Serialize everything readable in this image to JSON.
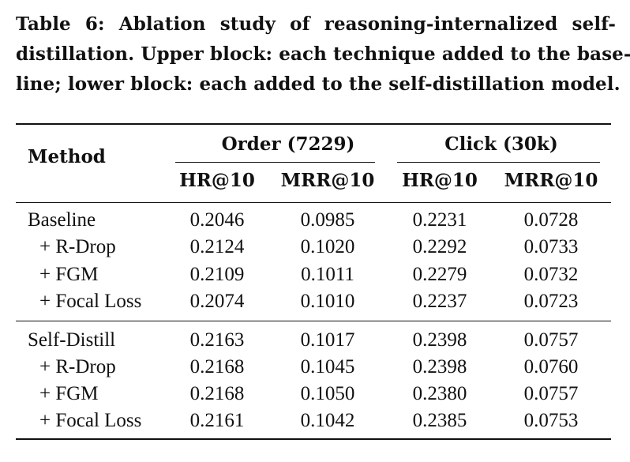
{
  "caption": {
    "lines": [
      "Table 6: Ablation study of reasoning-internalized self-",
      "distillation. Upper block: each technique added to the base-",
      "line; lower block: each added to the self-distillation model."
    ]
  },
  "table": {
    "method_header": "Method",
    "groups": [
      {
        "label": "Order (7229)",
        "cols": [
          "HR@10",
          "MRR@10"
        ]
      },
      {
        "label": "Click (30k)",
        "cols": [
          "HR@10",
          "MRR@10"
        ]
      }
    ],
    "rows": [
      {
        "method": "Baseline",
        "values": [
          "0.2046",
          "0.0985",
          "0.2231",
          "0.0728"
        ]
      },
      {
        "method": "+ R-Drop",
        "values": [
          "0.2124",
          "0.1020",
          "0.2292",
          "0.0733"
        ]
      },
      {
        "method": "+ FGM",
        "values": [
          "0.2109",
          "0.1011",
          "0.2279",
          "0.0732"
        ]
      },
      {
        "method": "+ Focal Loss",
        "values": [
          "0.2074",
          "0.1010",
          "0.2237",
          "0.0723"
        ]
      },
      {
        "method": "Self-Distill",
        "values": [
          "0.2163",
          "0.1017",
          "0.2398",
          "0.0757"
        ]
      },
      {
        "method": "+ R-Drop",
        "values": [
          "0.2168",
          "0.1045",
          "0.2398",
          "0.0760"
        ]
      },
      {
        "method": "+ FGM",
        "values": [
          "0.2168",
          "0.1050",
          "0.2380",
          "0.0757"
        ]
      },
      {
        "method": "+ Focal Loss",
        "values": [
          "0.2161",
          "0.1042",
          "0.2385",
          "0.0753"
        ]
      }
    ]
  }
}
